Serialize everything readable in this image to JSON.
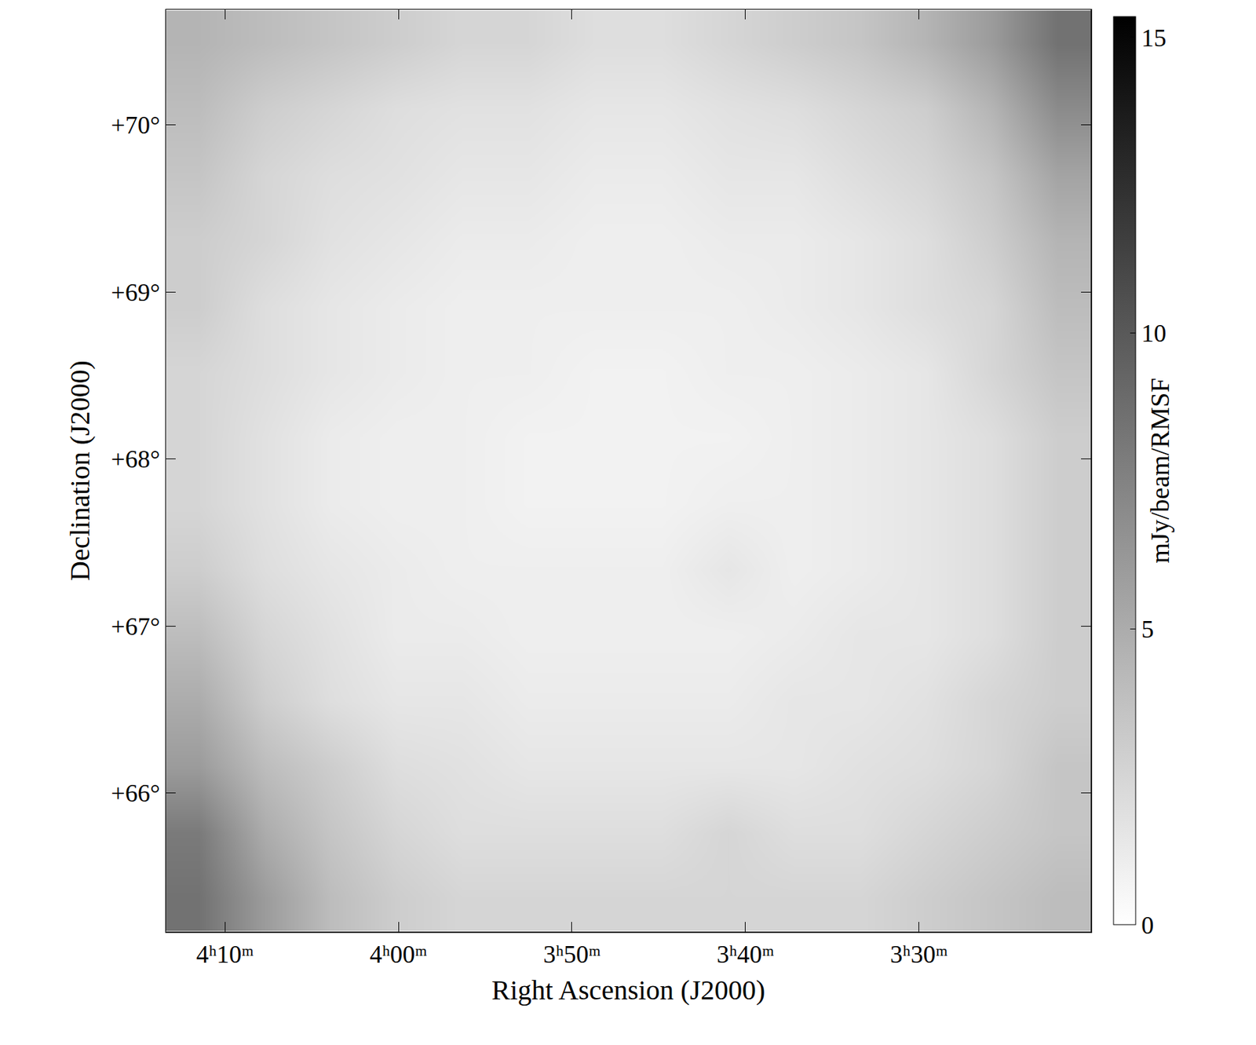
{
  "chart_data": {
    "type": "heatmap",
    "x_label": "Right Ascension (J2000)",
    "y_label": "Declination (J2000)",
    "xlim": [
      253.4,
      200.1
    ],
    "ylim": [
      65.17,
      70.69
    ],
    "xticks": [
      {
        "value": 250,
        "label": "4ʰ10ᵐ"
      },
      {
        "value": 240,
        "label": "4ʰ00ᵐ"
      },
      {
        "value": 230,
        "label": "3ʰ50ᵐ"
      },
      {
        "value": 220,
        "label": "3ʰ40ᵐ"
      },
      {
        "value": 210,
        "label": "3ʰ30ᵐ"
      }
    ],
    "yticks": [
      {
        "value": 66,
        "label": "+66°"
      },
      {
        "value": 67,
        "label": "+67°"
      },
      {
        "value": 68,
        "label": "+68°"
      },
      {
        "value": 69,
        "label": "+69°"
      },
      {
        "value": 70,
        "label": "+70°"
      }
    ],
    "x": [
      251.5,
      247.7,
      243.9,
      240.1,
      236.3,
      232.5,
      228.7,
      224.8,
      221.0,
      217.2,
      213.4,
      209.6,
      205.8,
      202.0
    ],
    "y": [
      65.37,
      65.76,
      66.16,
      66.55,
      66.94,
      67.34,
      67.73,
      68.13,
      68.52,
      68.91,
      69.31,
      69.7,
      70.1,
      70.49
    ],
    "z": [
      [
        8.5,
        6,
        4,
        3,
        2.5,
        2.5,
        2.5,
        2.5,
        2.5,
        2.5,
        2.5,
        3,
        3.5,
        4
      ],
      [
        8,
        5,
        3.5,
        2.5,
        2,
        2,
        2,
        2,
        2.5,
        2,
        2,
        2.5,
        3,
        3.5
      ],
      [
        6,
        4,
        3,
        2,
        1.8,
        1.5,
        1.5,
        1.5,
        1.5,
        1.5,
        1.8,
        2,
        2.5,
        3.5
      ],
      [
        5,
        3,
        2,
        1.5,
        1.5,
        1.2,
        1.2,
        1.2,
        1.2,
        1.5,
        1.5,
        1.8,
        2.5,
        3
      ],
      [
        4,
        2.5,
        1.8,
        1.2,
        1.2,
        1,
        1,
        1,
        1,
        1.2,
        1.5,
        1.5,
        2,
        3
      ],
      [
        3,
        2,
        1.5,
        1.2,
        1,
        1,
        1,
        1,
        1.5,
        1,
        1.2,
        1.5,
        2,
        3
      ],
      [
        2.5,
        1.8,
        1.2,
        1,
        1,
        0.8,
        0.8,
        0.8,
        1,
        1,
        1.2,
        1.5,
        2,
        3
      ],
      [
        2.5,
        1.8,
        1.2,
        1,
        1,
        0.8,
        0.8,
        0.8,
        0.8,
        1,
        1.2,
        1.5,
        2,
        3
      ],
      [
        2.5,
        2,
        1.5,
        1.2,
        1,
        1,
        0.8,
        0.8,
        1,
        1,
        1.2,
        1.5,
        2.5,
        3.5
      ],
      [
        3,
        2,
        1.5,
        1.2,
        1,
        1,
        1,
        1,
        1,
        1.2,
        1.5,
        2,
        2.5,
        4
      ],
      [
        3,
        2.5,
        1.8,
        1.5,
        1.2,
        1.2,
        1,
        1,
        1.2,
        1.2,
        1.5,
        2,
        3,
        4.5
      ],
      [
        3.5,
        2.5,
        2,
        1.8,
        1.5,
        1.5,
        1.2,
        1.2,
        1.5,
        1.5,
        2,
        2.5,
        3.5,
        5.5
      ],
      [
        4,
        3,
        2.5,
        2,
        1.8,
        1.8,
        1.5,
        1.5,
        1.8,
        2,
        2.5,
        3,
        4.5,
        7
      ],
      [
        4.5,
        4,
        3.5,
        3,
        2.5,
        2.5,
        2,
        2,
        2.5,
        3,
        3.5,
        4.5,
        6,
        8.5
      ]
    ],
    "colorbar": {
      "title": "mJy/beam/RMSF",
      "range": [
        0,
        15.35
      ],
      "ticks": [
        0,
        5,
        10,
        15
      ]
    }
  }
}
